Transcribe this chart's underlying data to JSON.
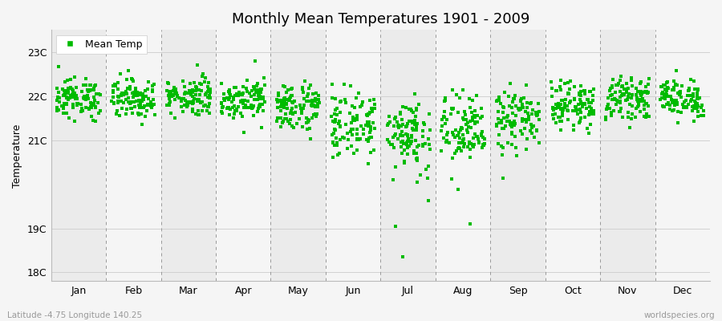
{
  "title": "Monthly Mean Temperatures 1901 - 2009",
  "ylabel": "Temperature",
  "bottom_left_label": "Latitude -4.75 Longitude 140.25",
  "bottom_right_label": "worldspecies.org",
  "legend_label": "Mean Temp",
  "months": [
    "Jan",
    "Feb",
    "Mar",
    "Apr",
    "May",
    "Jun",
    "Jul",
    "Aug",
    "Sep",
    "Oct",
    "Nov",
    "Dec"
  ],
  "yticks": [
    18,
    19,
    21,
    22,
    23
  ],
  "ytick_labels": [
    "18C",
    "19C",
    "21C",
    "22C",
    "23C"
  ],
  "ylim": [
    17.8,
    23.5
  ],
  "marker_color": "#00bb00",
  "marker_size": 3.5,
  "years": 109,
  "monthly_means": [
    21.95,
    21.95,
    22.0,
    21.95,
    21.75,
    21.35,
    21.15,
    21.2,
    21.45,
    21.8,
    21.95,
    21.95
  ],
  "monthly_stds": [
    0.22,
    0.22,
    0.22,
    0.22,
    0.28,
    0.38,
    0.45,
    0.42,
    0.35,
    0.25,
    0.22,
    0.22
  ],
  "stripe_even": "#ebebeb",
  "stripe_odd": "#f5f5f5",
  "bg_color": "#f5f5f5",
  "title_fontsize": 13,
  "label_fontsize": 9,
  "tick_fontsize": 9
}
